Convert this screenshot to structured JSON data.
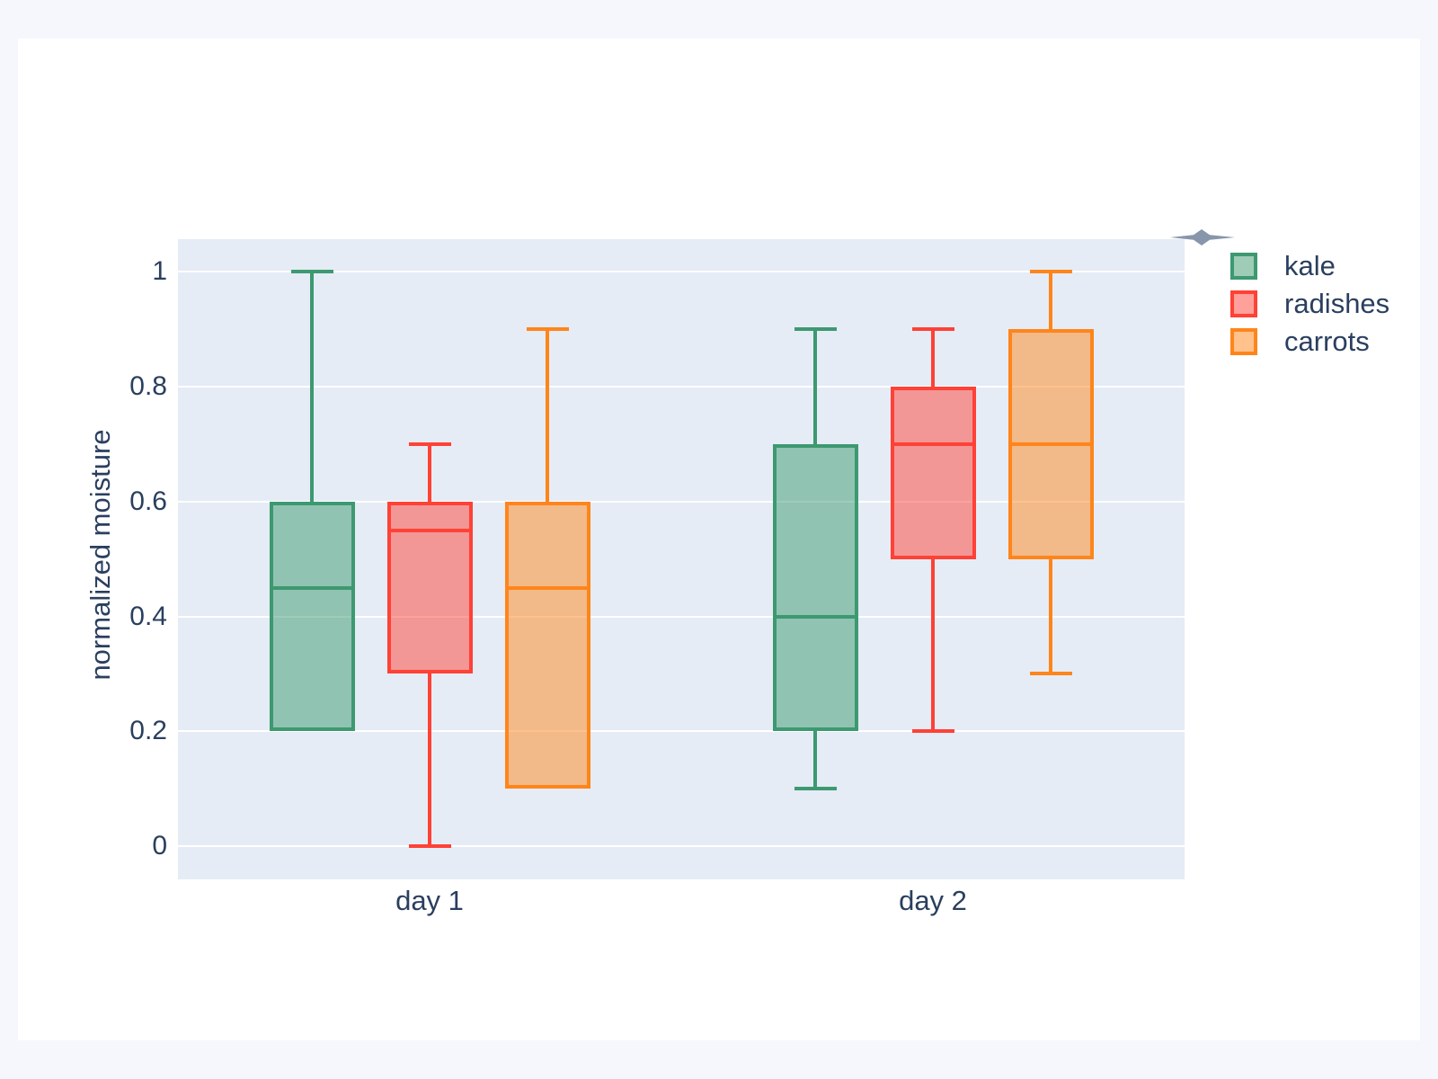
{
  "page": {
    "background": "#f6f7fd",
    "card_background": "#ffffff"
  },
  "chart": {
    "plot_background": "#e5ecf6",
    "grid_color": "#ffffff",
    "text_color": "#2a3f5f",
    "logo_color": "#8796ab",
    "logo_name": "plotly-dart"
  },
  "chart_data": {
    "type": "box",
    "title": "",
    "xlabel": "",
    "ylabel": "normalized moisture",
    "categories": [
      "day 1",
      "day 2"
    ],
    "yticks": [
      "0",
      "0.2",
      "0.4",
      "0.6",
      "0.8",
      "1"
    ],
    "ytick_values": [
      0,
      0.2,
      0.4,
      0.6,
      0.8,
      1
    ],
    "ylim": [
      -0.058,
      1.057
    ],
    "grid": true,
    "boxmode": "group",
    "legend_position": "top-right-outside",
    "series": [
      {
        "name": "kale",
        "color": "#3D9970",
        "fill_opacity": 0.5,
        "boxes": [
          {
            "category": "day 1",
            "min": 0.2,
            "q1": 0.2,
            "median": 0.45,
            "q3": 0.6,
            "max": 1.0
          },
          {
            "category": "day 2",
            "min": 0.1,
            "q1": 0.2,
            "median": 0.4,
            "q3": 0.7,
            "max": 0.9
          }
        ]
      },
      {
        "name": "radishes",
        "color": "#FF4136",
        "fill_opacity": 0.5,
        "boxes": [
          {
            "category": "day 1",
            "min": 0.0,
            "q1": 0.3,
            "median": 0.55,
            "q3": 0.6,
            "max": 0.7
          },
          {
            "category": "day 2",
            "min": 0.2,
            "q1": 0.5,
            "median": 0.7,
            "q3": 0.8,
            "max": 0.9
          }
        ]
      },
      {
        "name": "carrots",
        "color": "#FF851B",
        "fill_opacity": 0.5,
        "boxes": [
          {
            "category": "day 1",
            "min": 0.1,
            "q1": 0.1,
            "median": 0.45,
            "q3": 0.6,
            "max": 0.9
          },
          {
            "category": "day 2",
            "min": 0.3,
            "q1": 0.5,
            "median": 0.7,
            "q3": 0.9,
            "max": 1.0
          }
        ]
      }
    ]
  }
}
